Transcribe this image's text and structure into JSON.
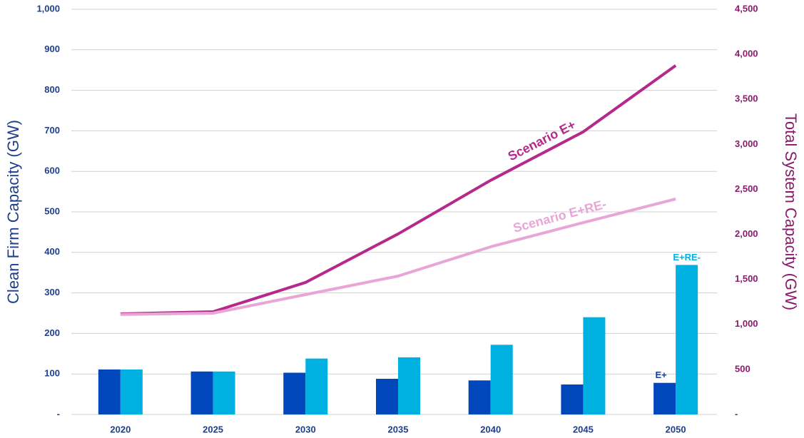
{
  "chart_data": {
    "type": "bar",
    "categories": [
      "2020",
      "2025",
      "2030",
      "2035",
      "2040",
      "2045",
      "2050"
    ],
    "ylabel": "Clean Firm Capacity (GW)",
    "y2label": "Total System Capacity (GW)",
    "ylim": [
      0,
      1000
    ],
    "yticks": [
      {
        "value": 0,
        "label": "-"
      },
      100,
      200,
      300,
      400,
      500,
      600,
      700,
      800,
      900,
      {
        "value": 1000,
        "label": "1,000"
      }
    ],
    "y2lim": [
      0,
      4500
    ],
    "y2ticks": [
      {
        "value": 0,
        "label": "-"
      },
      500,
      {
        "value": 1000,
        "label": "1,000"
      },
      {
        "value": 1500,
        "label": "1,500"
      },
      {
        "value": 2000,
        "label": "2,000"
      },
      {
        "value": 2500,
        "label": "2,500"
      },
      {
        "value": 3000,
        "label": "3,000"
      },
      {
        "value": 3500,
        "label": "3,500"
      },
      {
        "value": 4000,
        "label": "4,000"
      },
      {
        "value": 4500,
        "label": "4,500"
      }
    ],
    "grid": true,
    "series": [
      {
        "name": "E+",
        "type": "bar",
        "color": "#0047bb",
        "values": [
          111,
          106,
          103,
          88,
          84,
          74,
          78
        ]
      },
      {
        "name": "E+RE-",
        "type": "bar",
        "color": "#00b0e0",
        "values": [
          111,
          106,
          138,
          141,
          172,
          240,
          369
        ]
      },
      {
        "name": "Scenario E+",
        "type": "line",
        "axis": "y2",
        "color": "#b5298c",
        "values": [
          1117,
          1141,
          1466,
          2005,
          2600,
          3138,
          3875
        ]
      },
      {
        "name": "Scenario E+RE-",
        "type": "line",
        "axis": "y2",
        "color": "#e8a6d6",
        "values": [
          1110,
          1125,
          1331,
          1537,
          1862,
          2131,
          2393
        ]
      }
    ]
  }
}
